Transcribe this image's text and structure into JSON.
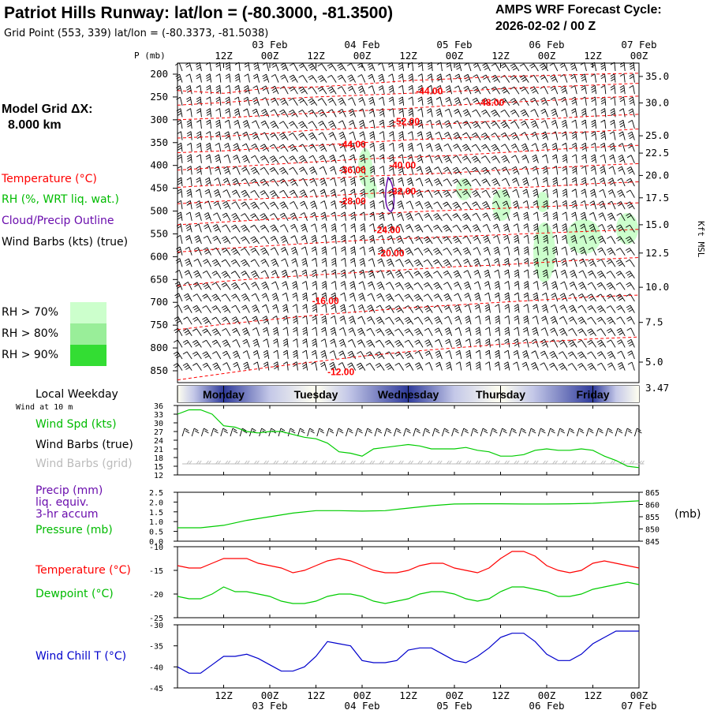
{
  "header": {
    "title": "Patriot Hills Runway:  lat/lon = (-80.3000, -81.3500)",
    "grid_point": "Grid Point (553, 339) lat/lon = (-80.3373, -81.5038)",
    "cycle_line1": "AMPS WRF Forecast Cycle:",
    "cycle_line2": "2026-02-02 / 00  Z"
  },
  "legend": {
    "model_grid_line1": "Model Grid ΔX:",
    "model_grid_line2": "8.000 km",
    "temperature": "Temperature (°C)",
    "rh": "RH (%, WRT liq. wat.)",
    "cloud": "Cloud/Precip Outline",
    "wind": "Wind Barbs (kts) (true)",
    "rh70": "RH > 70%",
    "rh80": "RH > 80%",
    "rh90": "RH > 90%"
  },
  "time_axis": {
    "top_hours": [
      "12Z",
      "00Z",
      "12Z",
      "00Z",
      "12Z",
      "00Z",
      "12Z",
      "00Z",
      "12Z",
      "00Z"
    ],
    "top_dates": [
      "03 Feb",
      "04 Feb",
      "05 Feb",
      "06 Feb",
      "07 Feb"
    ],
    "bottom_hours": [
      "12Z",
      "00Z",
      "12Z",
      "00Z",
      "12Z",
      "00Z",
      "12Z",
      "00Z",
      "12Z",
      "00Z"
    ],
    "bottom_dates": [
      "03 Feb",
      "04 Feb",
      "05 Feb",
      "06 Feb",
      "07 Feb"
    ]
  },
  "weekday": {
    "label": "Local Weekday",
    "days": [
      "Monday",
      "Tuesday",
      "Wednesday",
      "Thursday",
      "Friday"
    ]
  },
  "panels": {
    "wind": {
      "sub_label": "Wind at 10 m",
      "spd_label": "Wind Spd (kts)",
      "barbs_true": "Wind Barbs (true)",
      "barbs_grid": "Wind Barbs (grid)"
    },
    "precip": {
      "label1": "Precip (mm)",
      "label2": "liq. equiv.",
      "label3": "3-hr accum",
      "label4": "Pressure (mb)",
      "unit_right": "(mb)"
    },
    "temp": {
      "temp_label": "Temperature (°C)",
      "dew_label": "Dewpoint (°C)"
    },
    "chill": {
      "label": "Wind Chill T (°C)"
    }
  },
  "colors": {
    "temperature": "#ff0000",
    "dewpoint": "#00cc00",
    "cloud": "#6a0dad",
    "pressure": "#00cc00",
    "wind_speed": "#00cc00",
    "grid_barbs": "#bbbbbb",
    "wind_chill": "#0000cc",
    "rh70": "#ccffcc",
    "rh80": "#99ee99",
    "rh90": "#33dd33"
  },
  "chart_data": [
    {
      "type": "heatmap",
      "title": "Patriot Hills Runway:  lat/lon = (-80.3000, -81.3500)",
      "ylabel": "P (mb)",
      "y2label": "Kft MSL",
      "x_range_hours": [
        0,
        120
      ],
      "y_range_mb": [
        200,
        860
      ],
      "y_ticks_mb": [
        "200",
        "250",
        "300",
        "350",
        "400",
        "450",
        "500",
        "550",
        "600",
        "650",
        "700",
        "750",
        "800",
        "850"
      ],
      "y2_ticks": [
        {
          "label": "35.0",
          "p": 205
        },
        {
          "label": "30.0",
          "p": 263
        },
        {
          "label": "25.0",
          "p": 335
        },
        {
          "label": "22.5",
          "p": 373
        },
        {
          "label": "20.0",
          "p": 422
        },
        {
          "label": "17.5",
          "p": 471
        },
        {
          "label": "15.0",
          "p": 530
        },
        {
          "label": "12.5",
          "p": 592
        },
        {
          "label": "10.0",
          "p": 667
        },
        {
          "label": "7.5",
          "p": 744
        },
        {
          "label": "5.0",
          "p": 831
        },
        {
          "label": "3.47",
          "p": 888
        }
      ],
      "isotherm_labels": [
        {
          "text": "-44.00",
          "hour": 62,
          "p": 237
        },
        {
          "text": "-48.00",
          "hour": 78,
          "p": 262
        },
        {
          "text": "-52.00",
          "hour": 56,
          "p": 304
        },
        {
          "text": "-44.00",
          "hour": 42,
          "p": 354
        },
        {
          "text": "-40.00",
          "hour": 55,
          "p": 400
        },
        {
          "text": "-36.00",
          "hour": 42,
          "p": 410
        },
        {
          "text": "-32.00",
          "hour": 55,
          "p": 457
        },
        {
          "text": "-28.00",
          "hour": 42,
          "p": 478
        },
        {
          "text": "-24.00",
          "hour": 51,
          "p": 541
        },
        {
          "text": "-20.00",
          "hour": 52,
          "p": 592
        },
        {
          "text": "-16.00",
          "hour": 35,
          "p": 697
        },
        {
          "text": "-12.00",
          "hour": 39,
          "p": 853
        }
      ]
    },
    {
      "type": "line",
      "name": "Wind Spd (kts)",
      "x_hours": [
        0,
        3,
        6,
        9,
        12,
        15,
        18,
        21,
        24,
        27,
        30,
        33,
        36,
        39,
        42,
        45,
        48,
        51,
        54,
        57,
        60,
        63,
        66,
        69,
        72,
        75,
        78,
        81,
        84,
        87,
        90,
        93,
        96,
        99,
        102,
        105,
        108,
        111,
        114,
        117,
        120
      ],
      "y": [
        33,
        34.5,
        34.5,
        33,
        29,
        28.5,
        27,
        26.5,
        27,
        27,
        26,
        25,
        24.5,
        23,
        20,
        19.5,
        18.5,
        21,
        21.5,
        22,
        22.5,
        22,
        21,
        21,
        21,
        21.5,
        20.5,
        20,
        18.5,
        18.5,
        19,
        20.5,
        21,
        20.5,
        20.5,
        21,
        20.5,
        18.5,
        17,
        15,
        14.5
      ],
      "ylim": [
        12,
        36
      ],
      "y_ticks": [
        "36",
        "33",
        "30",
        "27",
        "24",
        "21",
        "18",
        "15",
        "12"
      ]
    },
    {
      "type": "line",
      "name": "Pressure (mb)",
      "x_hours": [
        0,
        6,
        12,
        18,
        24,
        30,
        36,
        42,
        48,
        54,
        60,
        66,
        72,
        78,
        84,
        90,
        96,
        102,
        108,
        114,
        120
      ],
      "y": [
        850.5,
        850.5,
        851.5,
        853.5,
        855,
        856.5,
        857.5,
        857.5,
        857.3,
        857.5,
        858.5,
        859.5,
        860.2,
        860.3,
        860.3,
        860.2,
        860.2,
        860.3,
        860.5,
        861.0,
        861.5
      ],
      "ylim": [
        845,
        865
      ],
      "y_ticks_left": [
        "2.5",
        "2.0",
        "1.5",
        "1.0",
        "0.5",
        "0.0"
      ],
      "y_ticks_right": [
        "865",
        "860",
        "855",
        "850",
        "845"
      ]
    },
    {
      "type": "line",
      "x_hours": [
        0,
        3,
        6,
        9,
        12,
        15,
        18,
        21,
        24,
        27,
        30,
        33,
        36,
        39,
        42,
        45,
        48,
        51,
        54,
        57,
        60,
        63,
        66,
        69,
        72,
        75,
        78,
        81,
        84,
        87,
        90,
        93,
        96,
        99,
        102,
        105,
        108,
        111,
        114,
        117,
        120
      ],
      "series": [
        {
          "name": "Temperature (°C)",
          "values": [
            -14,
            -14.5,
            -14.5,
            -13.5,
            -12.5,
            -12.5,
            -12.5,
            -13.5,
            -14,
            -14.5,
            -15.5,
            -15,
            -14,
            -13,
            -12.5,
            -13,
            -14,
            -15,
            -15.5,
            -15.5,
            -15,
            -14,
            -13.5,
            -13.5,
            -14.5,
            -15,
            -15.5,
            -14.5,
            -12.5,
            -11,
            -11,
            -12,
            -14,
            -15,
            -15.5,
            -15,
            -13.5,
            -13,
            -13.5,
            -14,
            -14.5
          ]
        },
        {
          "name": "Dewpoint (°C)",
          "values": [
            -20.5,
            -21,
            -21,
            -20,
            -18.5,
            -19.5,
            -19.5,
            -20,
            -20.5,
            -21.5,
            -22,
            -22,
            -21.5,
            -20.5,
            -20,
            -20,
            -20.5,
            -21.5,
            -22,
            -21.5,
            -21,
            -20,
            -19.5,
            -19.5,
            -20,
            -21,
            -21.5,
            -21,
            -19.5,
            -18.5,
            -18.5,
            -19,
            -19.5,
            -20.5,
            -20.5,
            -20,
            -19,
            -18.5,
            -18,
            -17.5,
            -18
          ]
        }
      ],
      "ylim": [
        -25,
        -10
      ],
      "y_ticks": [
        "-10",
        "-15",
        "-20",
        "-25"
      ]
    },
    {
      "type": "line",
      "name": "Wind Chill T (°C)",
      "x_hours": [
        0,
        3,
        6,
        9,
        12,
        15,
        18,
        21,
        24,
        27,
        30,
        33,
        36,
        39,
        42,
        45,
        48,
        51,
        54,
        57,
        60,
        63,
        66,
        69,
        72,
        75,
        78,
        81,
        84,
        87,
        90,
        93,
        96,
        99,
        102,
        105,
        108,
        111,
        114,
        117,
        120
      ],
      "y": [
        -40,
        -41.5,
        -41.5,
        -39.5,
        -37.5,
        -37.5,
        -37,
        -38,
        -39.5,
        -41,
        -41,
        -40,
        -37.5,
        -34,
        -34.5,
        -35,
        -38.5,
        -39,
        -39,
        -38.5,
        -36,
        -35.5,
        -35.5,
        -37,
        -38.5,
        -39,
        -37.5,
        -35.5,
        -33,
        -32,
        -32,
        -34,
        -37,
        -38.5,
        -38.5,
        -37,
        -34.5,
        -33,
        -31.5,
        -31.5,
        -31.5
      ],
      "ylim": [
        -45,
        -30
      ],
      "y_ticks": [
        "-30",
        "-35",
        "-40",
        "-45"
      ]
    }
  ]
}
